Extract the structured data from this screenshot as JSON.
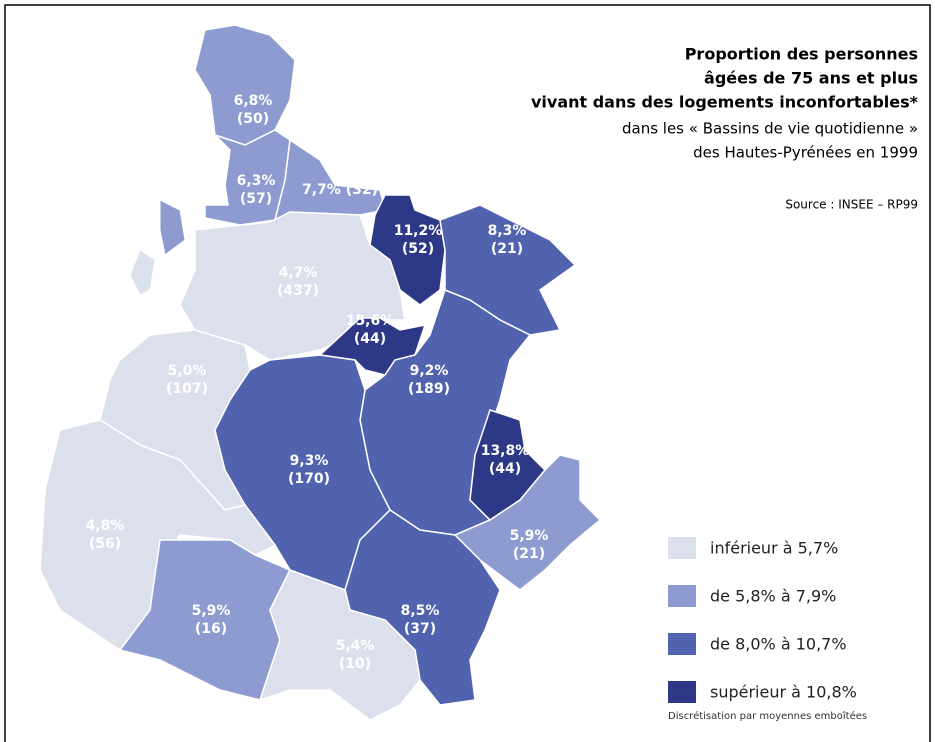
{
  "title": [
    "Proportion des personnes",
    "âgées de 75 ans et plus",
    "vivant dans des logements inconfortables*"
  ],
  "subtitle": [
    "dans les « Bassins de vie quotidienne »",
    "des Hautes-Pyrénées en 1999"
  ],
  "source": "Source : INSEE – RP99",
  "legend": {
    "items": [
      {
        "label": "inférieur à 5,7%",
        "color": "#dcdfec"
      },
      {
        "label": "de 5,8% à 7,9%",
        "color": "#8e9bd0"
      },
      {
        "label": "de 8,0% à 10,7%",
        "color": "#5162ae"
      },
      {
        "label": "supérieur à 10,8%",
        "color": "#2d3987"
      }
    ],
    "note": "Discrétisation par moyennes emboîtées"
  },
  "regions": [
    {
      "rate": "6,8%",
      "count": "(50)",
      "class": 1
    },
    {
      "rate": "6,3%",
      "count": "(57)",
      "class": 1
    },
    {
      "rate": "7,7%",
      "count": "(32)",
      "class": 1
    },
    {
      "rate": "11,2%",
      "count": "(52)",
      "class": 3
    },
    {
      "rate": "8,3%",
      "count": "(21)",
      "class": 2
    },
    {
      "rate": "4,7%",
      "count": "(437)",
      "class": 0
    },
    {
      "rate": "15,6%",
      "count": "(44)",
      "class": 3
    },
    {
      "rate": "5,0%",
      "count": "(107)",
      "class": 0
    },
    {
      "rate": "9,2%",
      "count": "(189)",
      "class": 2
    },
    {
      "rate": "9,3%",
      "count": "(170)",
      "class": 2
    },
    {
      "rate": "13,8%",
      "count": "(44)",
      "class": 3
    },
    {
      "rate": "4,8%",
      "count": "(56)",
      "class": 0
    },
    {
      "rate": "5,9%",
      "count": "(21)",
      "class": 1
    },
    {
      "rate": "5,9%",
      "count": "(16)",
      "class": 1
    },
    {
      "rate": "8,5%",
      "count": "(37)",
      "class": 2
    },
    {
      "rate": "5,4%",
      "count": "(10)",
      "class": 0
    }
  ]
}
